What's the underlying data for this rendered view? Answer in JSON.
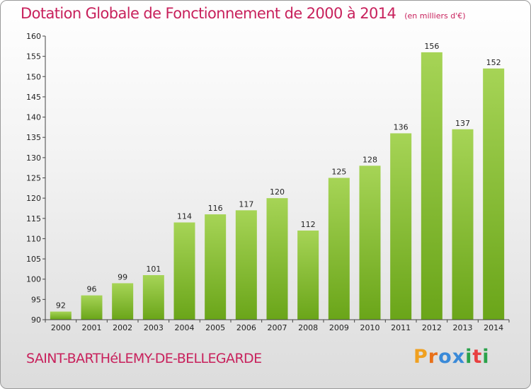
{
  "title": "Dotation Globale de Fonctionnement de 2000 à 2014",
  "unit": "(en milliers d'€)",
  "commune": "SAINT-BARTHéLEMY-DE-BELLEGARDE",
  "logo": {
    "letters": [
      "P",
      "r",
      "o",
      "x",
      "i",
      "t",
      "i"
    ],
    "colors": [
      "#f0a020",
      "#e8701a",
      "#3a8ad8",
      "#3a8ad8",
      "#2aa24a",
      "#e84040",
      "#2aa24a"
    ]
  },
  "colors": {
    "bar_top": "#a6d456",
    "bar_bottom": "#6aa519",
    "title": "#c8215c"
  },
  "chart_data": {
    "type": "bar",
    "categories": [
      "2000",
      "2001",
      "2002",
      "2003",
      "2004",
      "2005",
      "2006",
      "2007",
      "2008",
      "2009",
      "2010",
      "2011",
      "2012",
      "2013",
      "2014"
    ],
    "values": [
      92,
      96,
      99,
      101,
      114,
      116,
      117,
      120,
      112,
      125,
      128,
      136,
      156,
      137,
      152
    ],
    "yticks": [
      90,
      95,
      100,
      105,
      110,
      115,
      120,
      125,
      130,
      135,
      140,
      145,
      150,
      155,
      160
    ],
    "ylim": [
      90,
      160
    ],
    "grid": false,
    "legend": "none"
  }
}
